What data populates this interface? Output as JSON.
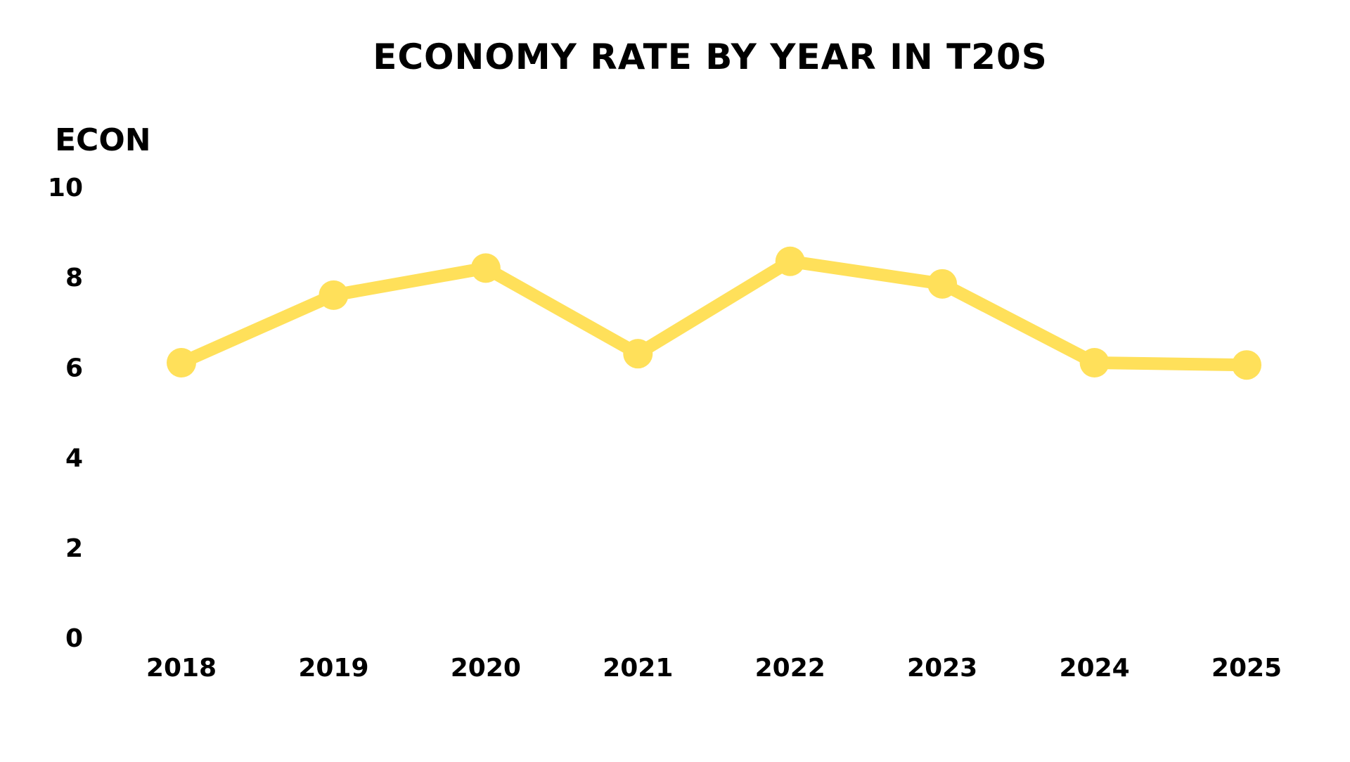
{
  "chart_data": {
    "type": "line",
    "title": "ECONOMY RATE BY YEAR IN T20S",
    "xlabel": "",
    "ylabel": "ECON",
    "categories": [
      "2018",
      "2019",
      "2020",
      "2021",
      "2022",
      "2023",
      "2024",
      "2025"
    ],
    "series": [
      {
        "values": [
          6.1,
          7.6,
          8.2,
          6.3,
          8.35,
          7.85,
          6.1,
          6.05
        ],
        "color": "#FFE05A"
      }
    ],
    "yticks": [
      "0",
      "2",
      "4",
      "6",
      "8",
      "10"
    ],
    "ylim": [
      0,
      10
    ],
    "grid": false,
    "legend": "none"
  }
}
